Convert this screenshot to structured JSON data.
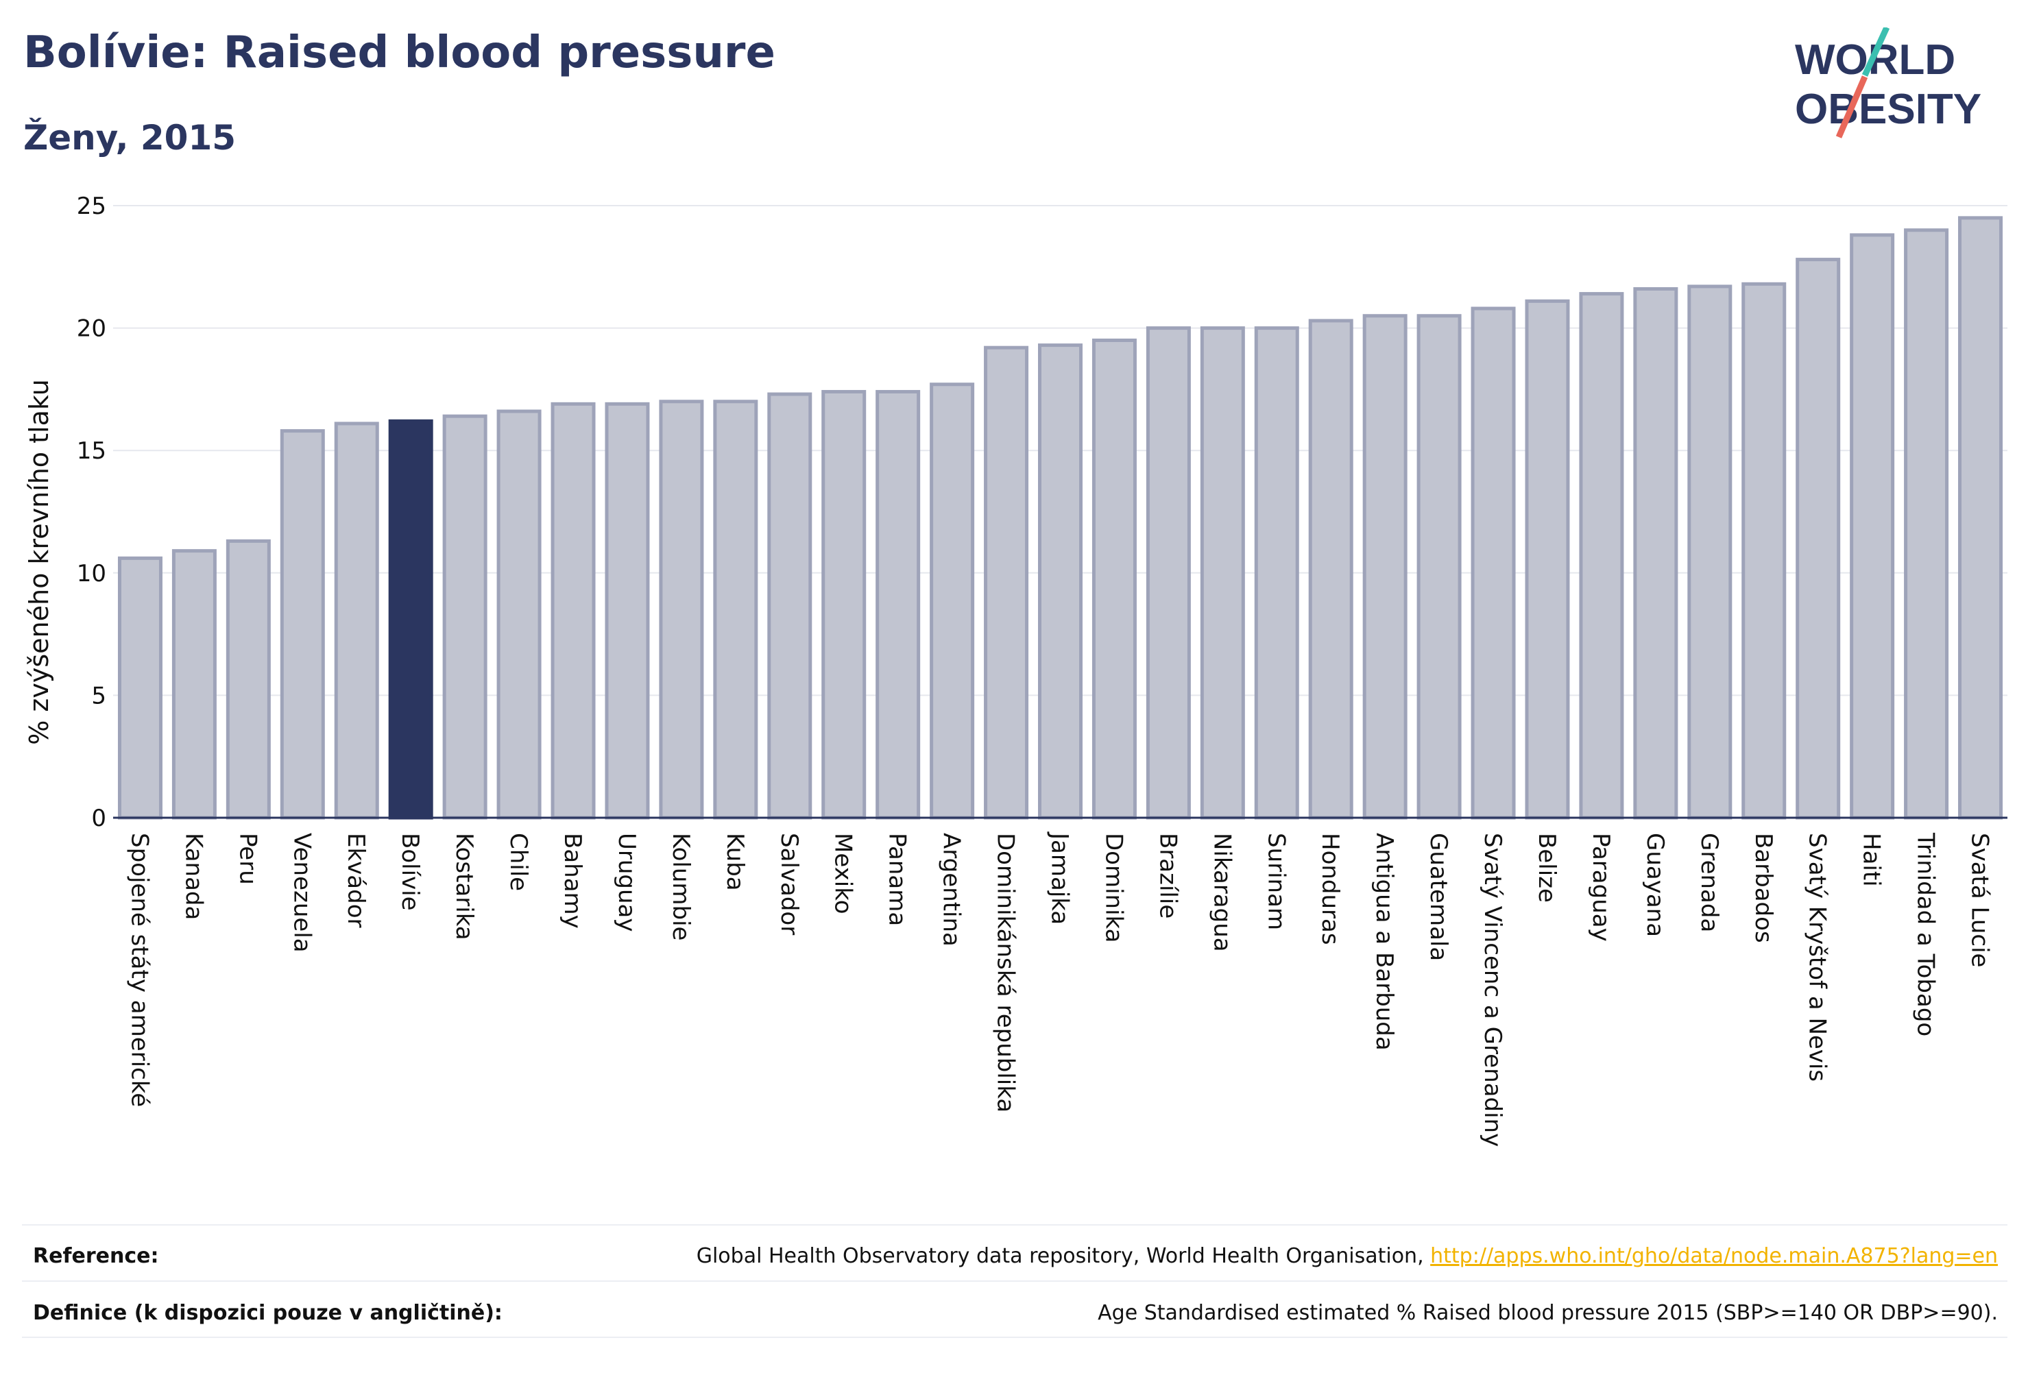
{
  "title": "Bolívie: Raised blood pressure",
  "subtitle": "Ženy, 2015",
  "logo": {
    "line1": "WORLD",
    "line2": "OBESITY"
  },
  "colors": {
    "highlight": "#2b3660",
    "bar_fill": "#c1c4d0",
    "bar_stroke": "#9ea3b9",
    "accent_teal": "#3bbfb0",
    "accent_red": "#e8675a",
    "link": "#f2b300"
  },
  "chart_data": {
    "type": "bar",
    "ylabel": "% zvýšeného krevního tlaku",
    "xlabel": "",
    "ylim": [
      0,
      25
    ],
    "yticks": [
      0,
      5,
      10,
      15,
      20,
      25
    ],
    "grid": true,
    "highlight": "Bolívie",
    "categories": [
      "Spojené státy americké",
      "Kanada",
      "Peru",
      "Venezuela",
      "Ekvádor",
      "Bolívie",
      "Kostarika",
      "Chile",
      "Bahamy",
      "Uruguay",
      "Kolumbie",
      "Kuba",
      "Salvador",
      "Mexiko",
      "Panama",
      "Argentina",
      "Dominikánská republika",
      "Jamajka",
      "Dominika",
      "Brazílie",
      "Nikaragua",
      "Surinam",
      "Honduras",
      "Antigua a Barbuda",
      "Guatemala",
      "Svatý Vincenc a Grenadiny",
      "Belize",
      "Paraguay",
      "Guayana",
      "Grenada",
      "Barbados",
      "Svatý Kryštof a Nevis",
      "Haiti",
      "Trinidad a Tobago",
      "Svatá Lucie"
    ],
    "values": [
      10.6,
      10.9,
      11.3,
      15.8,
      16.1,
      16.2,
      16.4,
      16.6,
      16.9,
      16.9,
      17.0,
      17.0,
      17.3,
      17.4,
      17.4,
      17.7,
      19.2,
      19.3,
      19.5,
      20.0,
      20.0,
      20.0,
      20.3,
      20.5,
      20.5,
      20.8,
      21.1,
      21.4,
      21.6,
      21.7,
      21.8,
      22.8,
      23.8,
      24.0,
      24.5
    ]
  },
  "footer": {
    "reference_label": "Reference:",
    "reference_text": "Global Health Observatory data repository, World Health Organisation, ",
    "reference_link": "http://apps.who.int/gho/data/node.main.A875?lang=en",
    "definition_label": "Definice (k dispozici pouze v angličtině):",
    "definition_text": "Age Standardised estimated % Raised blood pressure 2015 (SBP>=140 OR DBP>=90)."
  }
}
